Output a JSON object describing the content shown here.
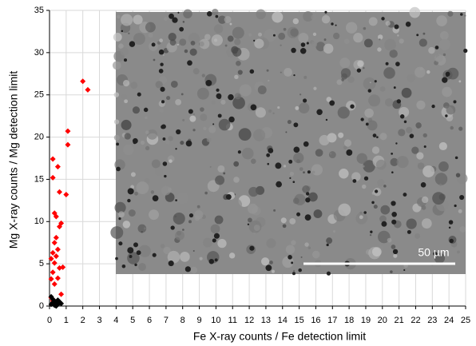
{
  "chart_data": {
    "type": "scatter",
    "xlabel": "Fe X-ray counts / Fe detection limit",
    "ylabel": "Mg X-ray counts / Mg detection limit",
    "xlim": [
      0,
      25
    ],
    "ylim": [
      0,
      35
    ],
    "xticks": [
      0,
      1,
      2,
      3,
      4,
      5,
      6,
      7,
      8,
      9,
      10,
      11,
      12,
      13,
      14,
      15,
      16,
      17,
      18,
      19,
      20,
      21,
      22,
      23,
      24,
      25
    ],
    "yticks": [
      0,
      5,
      10,
      15,
      20,
      25,
      30,
      35
    ],
    "grid": true,
    "annotation": "50 µm",
    "series": [
      {
        "color": "#ff0000",
        "x": [
          2.0,
          2.3,
          1.1,
          1.1,
          0.2,
          0.5,
          0.2,
          0.6,
          1.0,
          0.3,
          0.4,
          0.7,
          0.6,
          0.4,
          0.3,
          0.5,
          0.2,
          0.4,
          0.1,
          0.3,
          0.8,
          0.6,
          0.2,
          0.5,
          0.1,
          0.3,
          0.7,
          0.1,
          0.2
        ],
        "values": [
          26.6,
          25.6,
          20.7,
          19.1,
          17.4,
          16.5,
          15.2,
          13.5,
          13.2,
          11.0,
          10.6,
          9.8,
          9.4,
          8.1,
          7.5,
          6.7,
          6.3,
          5.9,
          5.6,
          5.1,
          4.6,
          4.5,
          4.0,
          3.3,
          3.2,
          2.6,
          1.4,
          1.0,
          0.6
        ]
      },
      {
        "color": "#000000",
        "x": [
          0.1,
          0.2,
          0.3,
          0.4,
          0.5,
          0.6,
          0.2,
          0.1,
          0.3,
          0.7,
          0.4,
          0.5
        ],
        "values": [
          0.2,
          0.4,
          0.1,
          0.3,
          0.2,
          0.5,
          0.8,
          1.1,
          0.6,
          0.3,
          0.0,
          0.7
        ]
      }
    ]
  }
}
